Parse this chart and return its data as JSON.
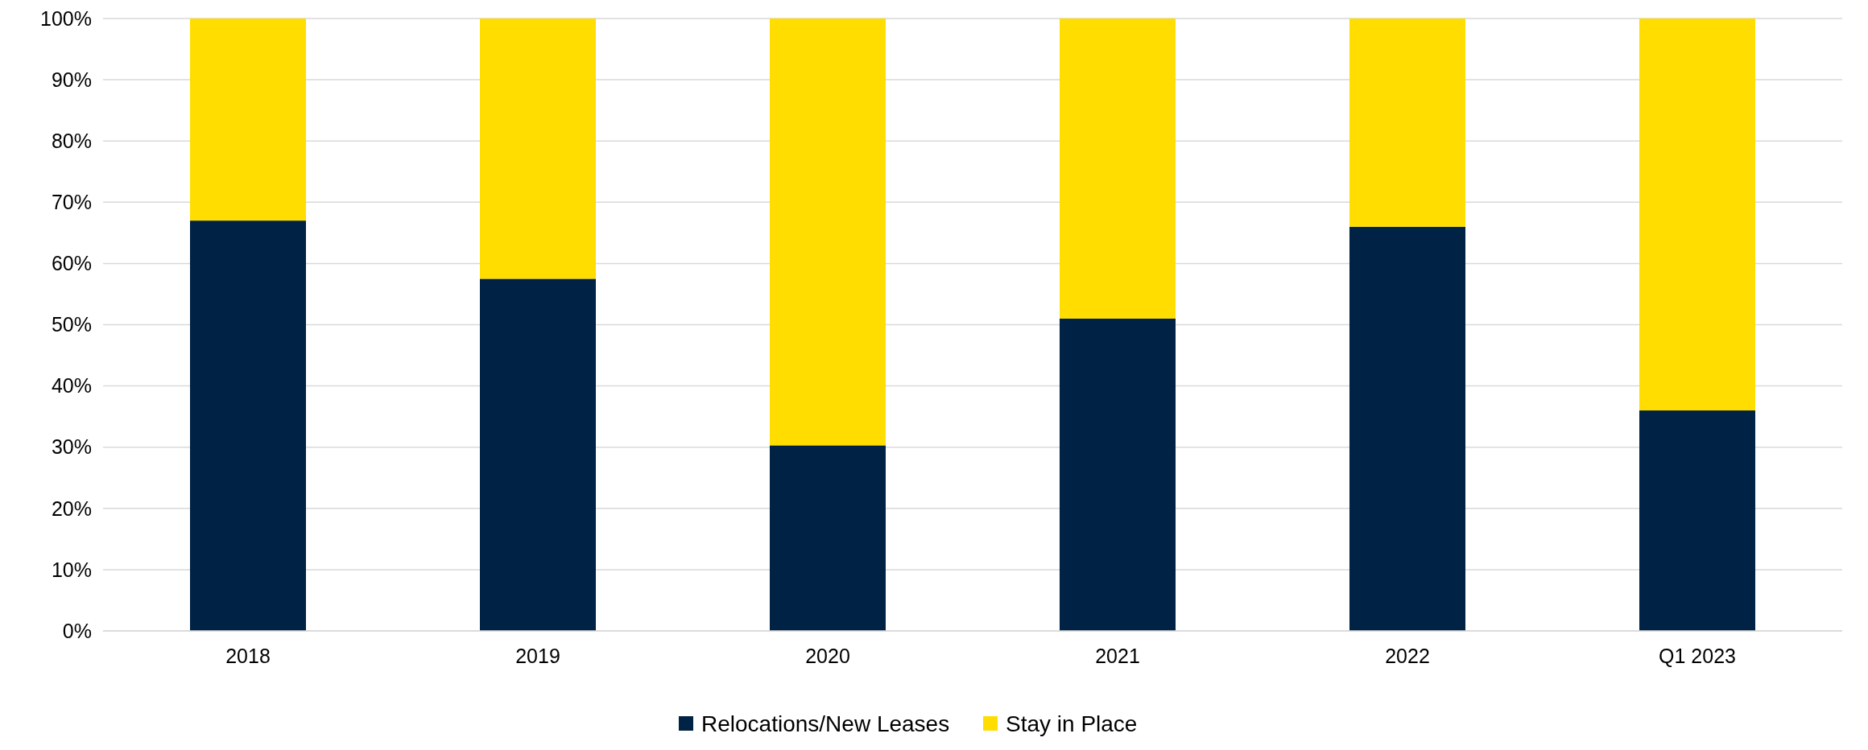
{
  "chart_data": {
    "type": "bar",
    "stacked": true,
    "categories": [
      "2018",
      "2019",
      "2020",
      "2021",
      "2022",
      "Q1 2023"
    ],
    "series": [
      {
        "name": "Relocations/New Leases",
        "color": "#002244",
        "values": [
          67,
          57.5,
          30.3,
          51,
          66,
          36
        ]
      },
      {
        "name": "Stay in Place",
        "color": "#ffdd00",
        "values": [
          33,
          42.5,
          69.7,
          49,
          34,
          64
        ]
      }
    ],
    "ylim": [
      0,
      100
    ],
    "yticks": [
      {
        "value": 0,
        "label": "0%"
      },
      {
        "value": 10,
        "label": "10%"
      },
      {
        "value": 20,
        "label": "20%"
      },
      {
        "value": 30,
        "label": "30%"
      },
      {
        "value": 40,
        "label": "40%"
      },
      {
        "value": 50,
        "label": "50%"
      },
      {
        "value": 60,
        "label": "60%"
      },
      {
        "value": 70,
        "label": "70%"
      },
      {
        "value": 80,
        "label": "80%"
      },
      {
        "value": 90,
        "label": "90%"
      },
      {
        "value": 100,
        "label": "100%"
      }
    ],
    "grid": "y",
    "legend": "bottom"
  }
}
